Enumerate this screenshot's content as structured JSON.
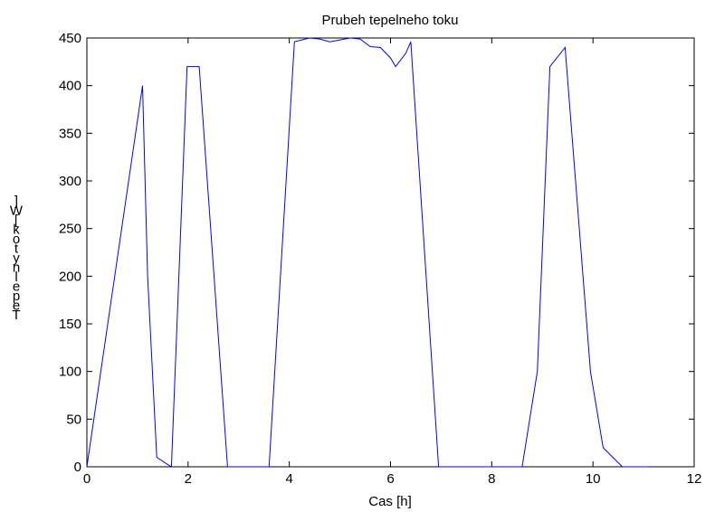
{
  "chart_data": {
    "type": "line",
    "title": "Prubeh tepelneho toku",
    "xlabel": "Cas [h]",
    "ylabel": "Tepelny tok [W]",
    "xlim": [
      0,
      12
    ],
    "ylim": [
      0,
      450
    ],
    "xticks": [
      0,
      2,
      4,
      6,
      8,
      10,
      12
    ],
    "yticks": [
      0,
      50,
      100,
      150,
      200,
      250,
      300,
      350,
      400,
      450
    ],
    "grid": false,
    "line_color": "#0000ff",
    "series": [
      {
        "x": [
          0,
          1.1,
          1.2,
          1.38,
          1.55,
          1.67,
          1.98,
          2.22,
          2.78,
          3.1,
          3.6,
          4.1,
          4.4,
          4.6,
          4.8,
          5.0,
          5.2,
          5.4,
          5.6,
          5.8,
          6.0,
          6.1,
          6.3,
          6.4,
          6.95,
          7.0,
          8.0,
          8.6,
          8.9,
          9.15,
          9.45,
          9.95,
          10.2,
          10.58,
          11.1
        ],
        "y": [
          0,
          400,
          200,
          10,
          4,
          0,
          420,
          420,
          0,
          0,
          0,
          446,
          450,
          449,
          446,
          448,
          450,
          449,
          441,
          440,
          429,
          420,
          434,
          446,
          0,
          0,
          0,
          0,
          100,
          420,
          440,
          100,
          20,
          0,
          0
        ]
      }
    ]
  }
}
